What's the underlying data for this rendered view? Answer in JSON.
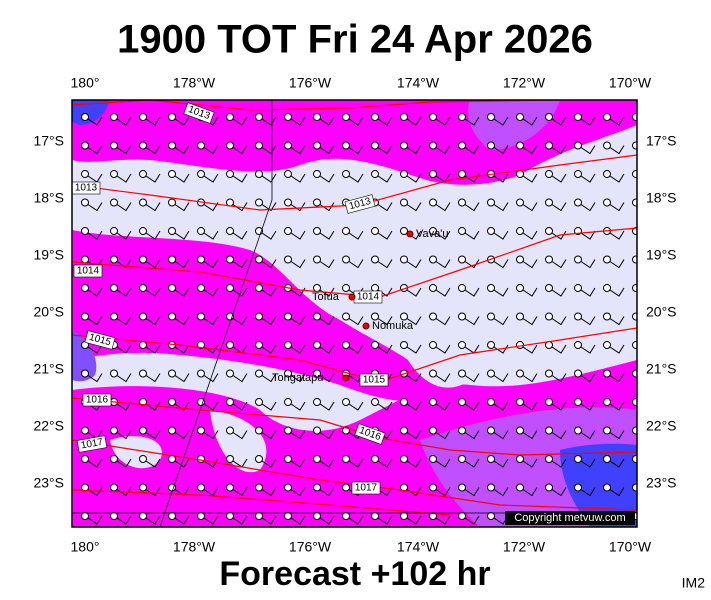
{
  "title": "1900 TOT Fri 24 Apr 2026",
  "footer": "Forecast +102 hr",
  "image_id": "IM2",
  "copyright": "Copyright metvuw.com",
  "longitude_labels": [
    "180°",
    "178°W",
    "176°W",
    "174°W",
    "172°W",
    "170°W"
  ],
  "latitude_labels": [
    "17°S",
    "18°S",
    "19°S",
    "20°S",
    "21°S",
    "22°S",
    "23°S"
  ],
  "places": [
    {
      "label": "Vava'u"
    },
    {
      "label": "Tofua"
    },
    {
      "label": "Nomuka"
    },
    {
      "label": "Tongatapu"
    }
  ],
  "isobar_labels": [
    "1013",
    "1013",
    "1013",
    "1014",
    "1014",
    "1015",
    "1015",
    "1016",
    "1016",
    "1017",
    "1017"
  ]
}
